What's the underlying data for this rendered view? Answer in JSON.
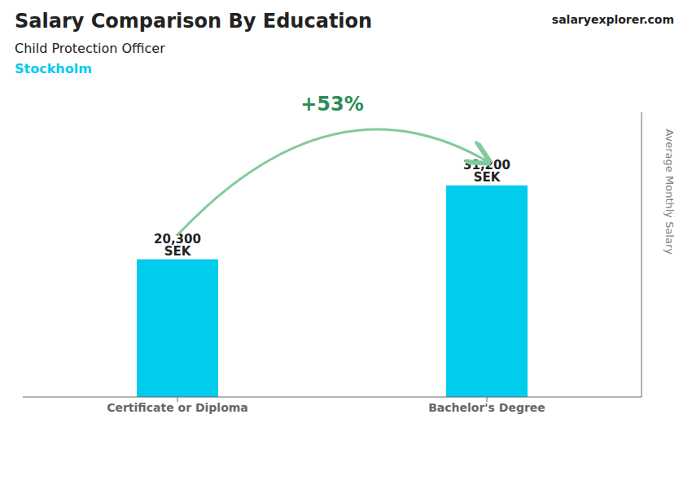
{
  "chart_data": {
    "type": "bar",
    "title": "Salary Comparison By Education",
    "subtitle": "Child Protection Officer",
    "annotations": [
      "Stockholm",
      "salaryexplorer.com",
      "+53%"
    ],
    "y_label": "Average Monthly Salary",
    "categories": [
      "Certificate or Diploma",
      "Bachelor's Degree"
    ],
    "values": [
      20300,
      31200
    ],
    "value_labels": [
      "20,300 SEK",
      "31,200 SEK"
    ],
    "data_labels": true,
    "color": "#00CCEE",
    "ylim": [
      0,
      42000
    ],
    "tick_labels": "x",
    "grid": false
  }
}
